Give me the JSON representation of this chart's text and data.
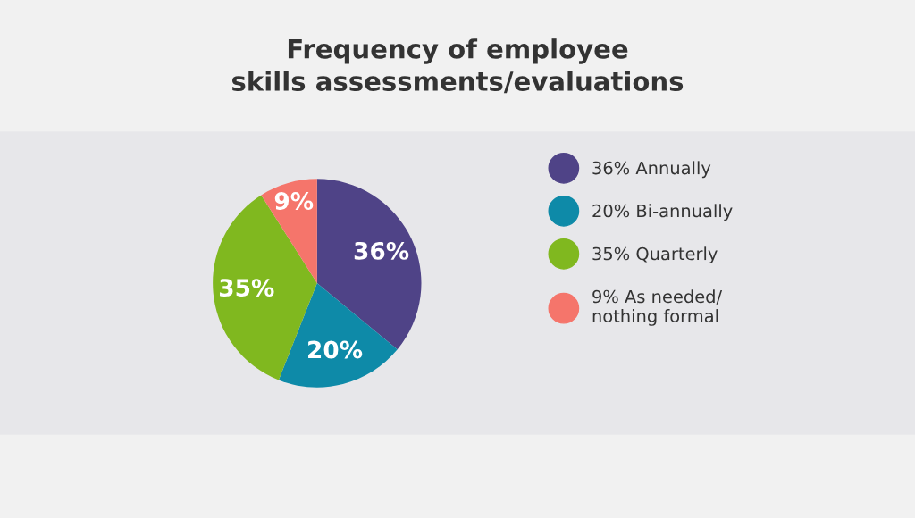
{
  "chart_data": {
    "type": "pie",
    "title": "Frequency of employee\nskills assessments/evaluations",
    "categories": [
      "Annually",
      "Bi-annually",
      "Quarterly",
      "As needed/\nnothing formal"
    ],
    "values": [
      36,
      20,
      35,
      9
    ],
    "colors": [
      "#4f4387",
      "#0e8aa8",
      "#80b81f",
      "#f5756b"
    ],
    "value_labels": [
      "36%",
      "20%",
      "35%",
      "9%"
    ],
    "legend": "right"
  }
}
